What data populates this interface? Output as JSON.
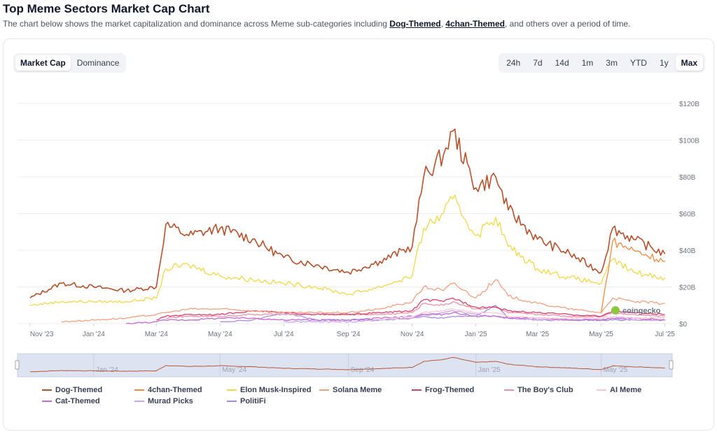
{
  "header": {
    "title": "Top Meme Sectors Market Cap Chart",
    "subtitle_prefix": "The chart below shows the market capitalization and dominance across Meme sub-categories including ",
    "link1": "Dog-Themed",
    "sep": ", ",
    "link2": "4chan-Themed",
    "subtitle_suffix": ", and others over a period of time."
  },
  "view_tabs": [
    {
      "label": "Market Cap",
      "active": true
    },
    {
      "label": "Dominance",
      "active": false
    }
  ],
  "range_tabs": [
    {
      "label": "24h",
      "active": false
    },
    {
      "label": "7d",
      "active": false
    },
    {
      "label": "14d",
      "active": false
    },
    {
      "label": "1m",
      "active": false
    },
    {
      "label": "3m",
      "active": false
    },
    {
      "label": "YTD",
      "active": false
    },
    {
      "label": "1y",
      "active": false
    },
    {
      "label": "Max",
      "active": true
    }
  ],
  "watermark": "coingecko",
  "colors": {
    "grid": "#eceef1",
    "navigator_fill": "#dde3f0",
    "navigator_line": "#b75a3a"
  },
  "chart_data": {
    "type": "line",
    "x_dates": [
      "2023-11-01",
      "2023-12-01",
      "2024-01-01",
      "2024-02-01",
      "2024-03-01",
      "2024-03-10",
      "2024-04-01",
      "2024-05-01",
      "2024-06-01",
      "2024-07-01",
      "2024-08-01",
      "2024-09-01",
      "2024-10-01",
      "2024-11-01",
      "2024-11-12",
      "2024-12-01",
      "2024-12-10",
      "2025-01-01",
      "2025-01-20",
      "2025-02-01",
      "2025-03-01",
      "2025-04-01",
      "2025-05-01",
      "2025-05-12",
      "2025-06-01",
      "2025-07-01"
    ],
    "x_ticks": [
      "Nov '23",
      "Jan '24",
      "Mar '24",
      "May '24",
      "Jul '24",
      "Sep '24",
      "Nov '24",
      "Jan '25",
      "Mar '25",
      "May '25",
      "Jul '25"
    ],
    "y_ticks": [
      "$0",
      "$20B",
      "$40B",
      "$60B",
      "$80B",
      "$100B",
      "$120B"
    ],
    "ylim": [
      0,
      120
    ],
    "navigator_ticks": [
      "Jan '24",
      "May '24",
      "Sep '24",
      "Jan '25",
      "May '25"
    ],
    "series": [
      {
        "name": "Dog-Themed",
        "color": "#b5502a",
        "values": [
          14,
          22,
          20,
          18,
          20,
          54,
          48,
          52,
          46,
          36,
          32,
          28,
          34,
          42,
          80,
          92,
          105,
          74,
          80,
          62,
          46,
          38,
          28,
          52,
          46,
          38
        ]
      },
      {
        "name": "4chan-Themed",
        "color": "#ee8a43",
        "values": [
          null,
          null,
          null,
          null,
          null,
          null,
          null,
          null,
          null,
          null,
          null,
          null,
          null,
          null,
          null,
          null,
          null,
          null,
          null,
          null,
          null,
          null,
          6,
          45,
          40,
          34
        ]
      },
      {
        "name": "Elon Musk-Inspired",
        "color": "#f2d848",
        "values": [
          10,
          12,
          12,
          12,
          14,
          30,
          32,
          26,
          24,
          22,
          20,
          16,
          20,
          26,
          52,
          60,
          68,
          48,
          58,
          42,
          30,
          25,
          22,
          35,
          28,
          25
        ]
      },
      {
        "name": "Solana Meme",
        "color": "#f3a07f",
        "values": [
          null,
          1,
          2,
          3,
          5,
          6,
          8,
          8,
          7,
          6,
          6,
          6,
          8,
          12,
          20,
          18,
          22,
          14,
          24,
          15,
          11,
          8,
          6,
          14,
          12,
          11
        ]
      },
      {
        "name": "Frog-Themed",
        "color": "#d6406b",
        "values": [
          null,
          null,
          null,
          null,
          2,
          4,
          5,
          5,
          7,
          6,
          5,
          5,
          6,
          7,
          13,
          12,
          14,
          9,
          9,
          7,
          6,
          5,
          4,
          7,
          6,
          5
        ]
      },
      {
        "name": "The Boy's Club",
        "color": "#ef8fa8",
        "values": [
          null,
          null,
          null,
          null,
          null,
          3,
          4,
          4,
          5,
          5,
          5,
          5,
          5,
          6,
          11,
          10,
          12,
          8,
          9,
          6,
          5,
          4,
          4,
          6,
          5,
          4
        ]
      },
      {
        "name": "AI Meme",
        "color": "#f8c8d4",
        "values": [
          null,
          null,
          null,
          null,
          null,
          null,
          null,
          null,
          null,
          null,
          null,
          null,
          2,
          4,
          6,
          7,
          8,
          6,
          6,
          4,
          3,
          3,
          3,
          4,
          3,
          3
        ]
      },
      {
        "name": "Cat-Themed",
        "color": "#c06ad2",
        "values": [
          null,
          null,
          null,
          0,
          1,
          2,
          2,
          3,
          3,
          2,
          2,
          2,
          3,
          4,
          5,
          5,
          6,
          4,
          4,
          3,
          3,
          2,
          2,
          3,
          3,
          2
        ]
      },
      {
        "name": "Murad Picks",
        "color": "#caa6e6",
        "values": [
          null,
          null,
          null,
          null,
          null,
          null,
          null,
          null,
          null,
          1,
          1,
          1,
          2,
          3,
          5,
          6,
          7,
          5,
          4,
          3,
          2,
          2,
          2,
          3,
          2,
          2
        ]
      },
      {
        "name": "PolitiFi",
        "color": "#a98ae0",
        "values": [
          null,
          null,
          null,
          null,
          null,
          null,
          null,
          1,
          2,
          6,
          2,
          2,
          2,
          3,
          4,
          3,
          4,
          4,
          10,
          3,
          2,
          2,
          2,
          2,
          2,
          2
        ]
      }
    ]
  }
}
